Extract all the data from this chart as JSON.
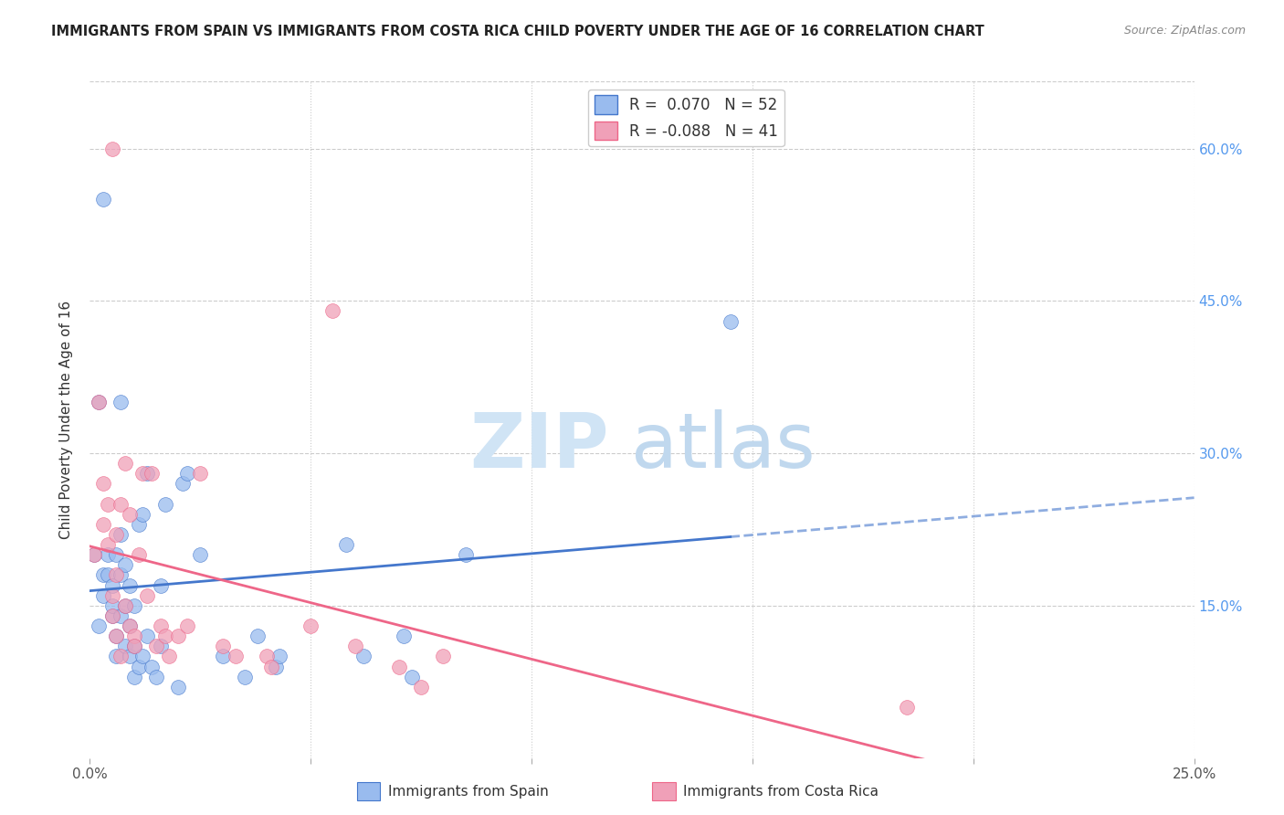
{
  "title": "IMMIGRANTS FROM SPAIN VS IMMIGRANTS FROM COSTA RICA CHILD POVERTY UNDER THE AGE OF 16 CORRELATION CHART",
  "source": "Source: ZipAtlas.com",
  "ylabel": "Child Poverty Under the Age of 16",
  "xlim": [
    0.0,
    0.25
  ],
  "ylim": [
    0.0,
    0.666
  ],
  "yticks_right": [
    0.15,
    0.3,
    0.45,
    0.6
  ],
  "yticklabels_right": [
    "15.0%",
    "30.0%",
    "45.0%",
    "60.0%"
  ],
  "grid_color": "#cccccc",
  "background_color": "#ffffff",
  "color_spain": "#99bbee",
  "color_costarica": "#f0a0b8",
  "trendline_color_spain": "#4477cc",
  "trendline_color_costarica": "#ee6688",
  "spain_x": [
    0.001,
    0.002,
    0.002,
    0.003,
    0.003,
    0.004,
    0.004,
    0.005,
    0.005,
    0.005,
    0.006,
    0.006,
    0.006,
    0.007,
    0.007,
    0.007,
    0.007,
    0.008,
    0.008,
    0.008,
    0.009,
    0.009,
    0.009,
    0.01,
    0.01,
    0.01,
    0.011,
    0.011,
    0.012,
    0.012,
    0.013,
    0.013,
    0.014,
    0.015,
    0.016,
    0.016,
    0.017,
    0.02,
    0.021,
    0.022,
    0.025,
    0.03,
    0.035,
    0.038,
    0.042,
    0.043,
    0.058,
    0.062,
    0.071,
    0.073,
    0.085,
    0.145
  ],
  "spain_y": [
    0.2,
    0.13,
    0.35,
    0.16,
    0.18,
    0.18,
    0.2,
    0.14,
    0.15,
    0.17,
    0.1,
    0.12,
    0.2,
    0.14,
    0.18,
    0.22,
    0.35,
    0.11,
    0.15,
    0.19,
    0.1,
    0.13,
    0.17,
    0.08,
    0.11,
    0.15,
    0.09,
    0.23,
    0.1,
    0.24,
    0.12,
    0.28,
    0.09,
    0.08,
    0.11,
    0.17,
    0.25,
    0.07,
    0.27,
    0.28,
    0.2,
    0.1,
    0.08,
    0.12,
    0.09,
    0.1,
    0.21,
    0.1,
    0.12,
    0.08,
    0.2,
    0.43
  ],
  "costarica_x": [
    0.001,
    0.002,
    0.003,
    0.003,
    0.004,
    0.004,
    0.005,
    0.005,
    0.006,
    0.006,
    0.006,
    0.007,
    0.007,
    0.008,
    0.008,
    0.009,
    0.009,
    0.01,
    0.01,
    0.011,
    0.012,
    0.013,
    0.014,
    0.015,
    0.016,
    0.017,
    0.018,
    0.02,
    0.022,
    0.025,
    0.03,
    0.033,
    0.04,
    0.041,
    0.05,
    0.055,
    0.06,
    0.07,
    0.075,
    0.08,
    0.185
  ],
  "costarica_y": [
    0.2,
    0.35,
    0.23,
    0.27,
    0.21,
    0.25,
    0.14,
    0.16,
    0.12,
    0.18,
    0.22,
    0.1,
    0.25,
    0.15,
    0.29,
    0.13,
    0.24,
    0.12,
    0.11,
    0.2,
    0.28,
    0.16,
    0.28,
    0.11,
    0.13,
    0.12,
    0.1,
    0.12,
    0.13,
    0.28,
    0.11,
    0.1,
    0.1,
    0.09,
    0.13,
    0.44,
    0.11,
    0.09,
    0.07,
    0.1,
    0.05
  ],
  "spain_outlier_x": [
    0.003
  ],
  "spain_outlier_y": [
    0.55
  ],
  "costarica_outlier_x": [
    0.005
  ],
  "costarica_outlier_y": [
    0.6
  ]
}
